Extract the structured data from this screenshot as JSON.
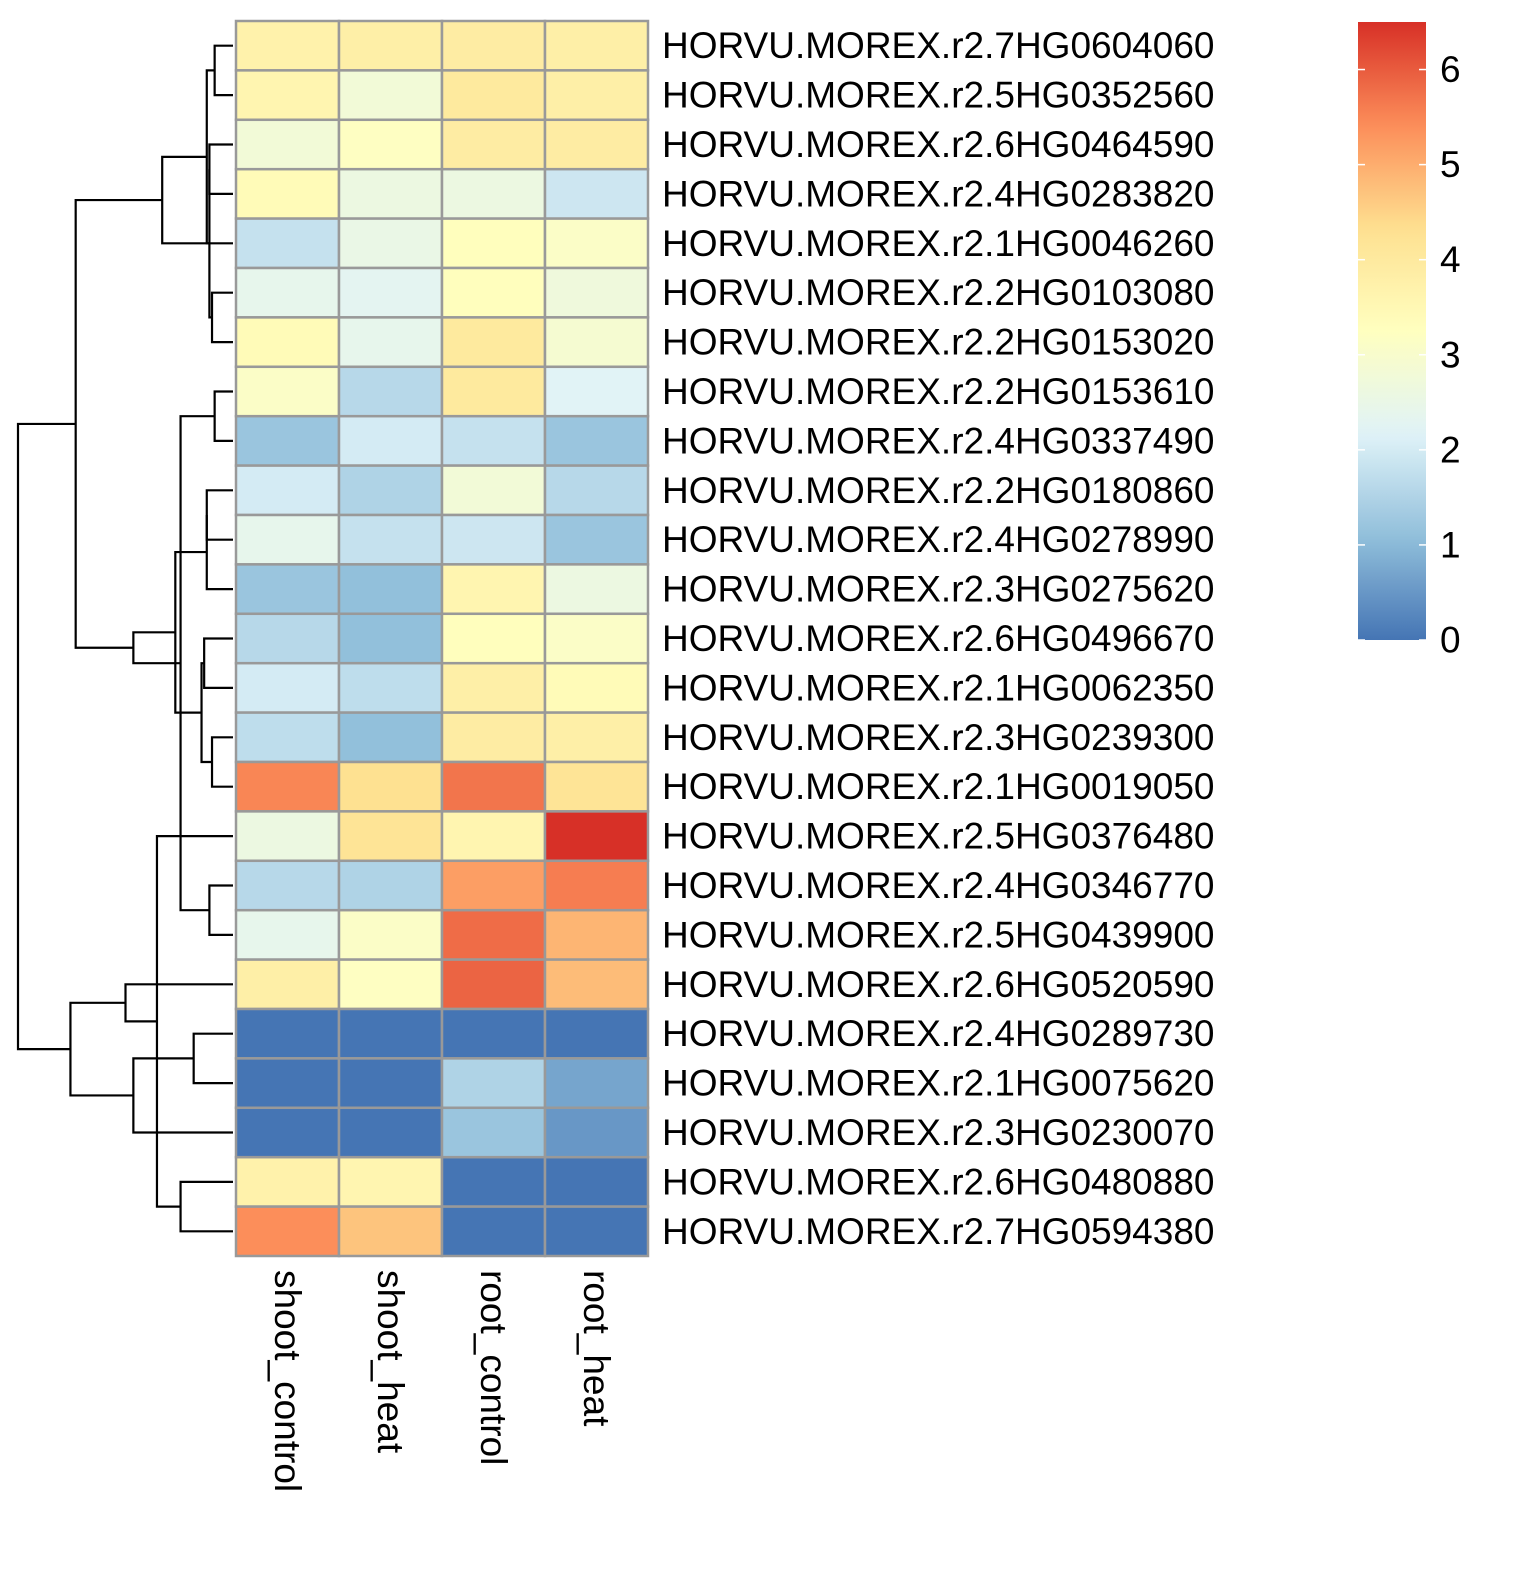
{
  "chart_data": {
    "type": "heatmap",
    "title": "",
    "xlabel": "",
    "ylabel": "",
    "columns": [
      "shoot_control",
      "shoot_heat",
      "root_control",
      "root_heat"
    ],
    "rows": [
      "HORVU.MOREX.r2.7HG0604060",
      "HORVU.MOREX.r2.5HG0352560",
      "HORVU.MOREX.r2.6HG0464590",
      "HORVU.MOREX.r2.4HG0283820",
      "HORVU.MOREX.r2.1HG0046260",
      "HORVU.MOREX.r2.2HG0103080",
      "HORVU.MOREX.r2.2HG0153020",
      "HORVU.MOREX.r2.2HG0153610",
      "HORVU.MOREX.r2.4HG0337490",
      "HORVU.MOREX.r2.2HG0180860",
      "HORVU.MOREX.r2.4HG0278990",
      "HORVU.MOREX.r2.3HG0275620",
      "HORVU.MOREX.r2.6HG0496670",
      "HORVU.MOREX.r2.1HG0062350",
      "HORVU.MOREX.r2.3HG0239300",
      "HORVU.MOREX.r2.1HG0019050",
      "HORVU.MOREX.r2.5HG0376480",
      "HORVU.MOREX.r2.4HG0346770",
      "HORVU.MOREX.r2.5HG0439900",
      "HORVU.MOREX.r2.6HG0520590",
      "HORVU.MOREX.r2.4HG0289730",
      "HORVU.MOREX.r2.1HG0075620",
      "HORVU.MOREX.r2.3HG0230070",
      "HORVU.MOREX.r2.6HG0480880",
      "HORVU.MOREX.r2.7HG0594380"
    ],
    "values": [
      [
        3.7,
        3.8,
        3.9,
        3.8
      ],
      [
        3.6,
        2.8,
        4.0,
        3.8
      ],
      [
        2.8,
        3.2,
        3.9,
        3.9
      ],
      [
        3.4,
        2.6,
        2.6,
        1.9
      ],
      [
        1.8,
        2.5,
        3.3,
        3.1
      ],
      [
        2.4,
        2.3,
        3.3,
        2.7
      ],
      [
        3.4,
        2.4,
        4.0,
        2.9
      ],
      [
        3.1,
        1.6,
        4.0,
        2.2
      ],
      [
        1.2,
        2.0,
        1.8,
        1.2
      ],
      [
        2.0,
        1.5,
        2.8,
        1.6
      ],
      [
        2.4,
        1.8,
        1.9,
        1.2
      ],
      [
        1.2,
        1.1,
        3.6,
        2.6
      ],
      [
        1.6,
        1.1,
        3.3,
        3.1
      ],
      [
        2.0,
        1.7,
        3.8,
        3.4
      ],
      [
        1.7,
        1.1,
        3.9,
        3.8
      ],
      [
        5.5,
        4.3,
        5.7,
        4.2
      ],
      [
        2.6,
        4.2,
        3.6,
        6.5
      ],
      [
        1.6,
        1.5,
        5.2,
        5.6
      ],
      [
        2.4,
        3.1,
        5.8,
        4.9
      ],
      [
        3.8,
        3.2,
        5.9,
        4.8
      ],
      [
        0.0,
        0.0,
        0.0,
        0.0
      ],
      [
        0.0,
        0.0,
        1.5,
        0.7
      ],
      [
        0.0,
        0.0,
        1.2,
        0.5
      ],
      [
        3.7,
        3.6,
        0.0,
        0.0
      ],
      [
        5.4,
        4.7,
        0.0,
        0.0
      ]
    ],
    "color_scale": {
      "min": 0,
      "max": 6.5,
      "ticks": [
        0,
        1,
        2,
        3,
        4,
        5,
        6
      ],
      "palette": [
        "#4575B4",
        "#91BFDB",
        "#E0F3F8",
        "#FFFFBF",
        "#FEE090",
        "#FC8D59",
        "#D73027"
      ]
    },
    "cell_border_color": "#999999",
    "row_dendrogram": {
      "merges": [
        [
          0,
          1,
          0.35
        ],
        [
          2,
          3,
          0.45
        ],
        [
          5,
          6,
          0.4
        ],
        [
          7,
          8,
          0.35
        ],
        [
          14,
          15,
          0.4
        ],
        [
          17,
          18,
          0.45
        ],
        [
          20,
          21,
          0.75
        ],
        [
          23,
          24,
          1.0
        ],
        [
          4,
          25,
          0.5
        ],
        [
          26,
          27,
          0.45
        ],
        [
          9,
          10,
          0.5
        ],
        [
          11,
          35,
          0.5
        ],
        [
          12,
          13,
          0.55
        ],
        [
          37,
          29,
          0.6
        ],
        [
          33,
          34,
          1.35
        ],
        [
          22,
          31,
          1.9
        ],
        [
          28,
          30,
          1.0
        ],
        [
          36,
          38,
          1.1
        ],
        [
          16,
          32,
          1.45
        ],
        [
          19,
          43,
          2.05
        ],
        [
          41,
          42,
          1.9
        ],
        [
          40,
          44,
          3.1
        ],
        [
          45,
          39,
          3.0
        ],
        [
          46,
          47,
          4.1
        ]
      ],
      "max_height": 4.1
    }
  }
}
